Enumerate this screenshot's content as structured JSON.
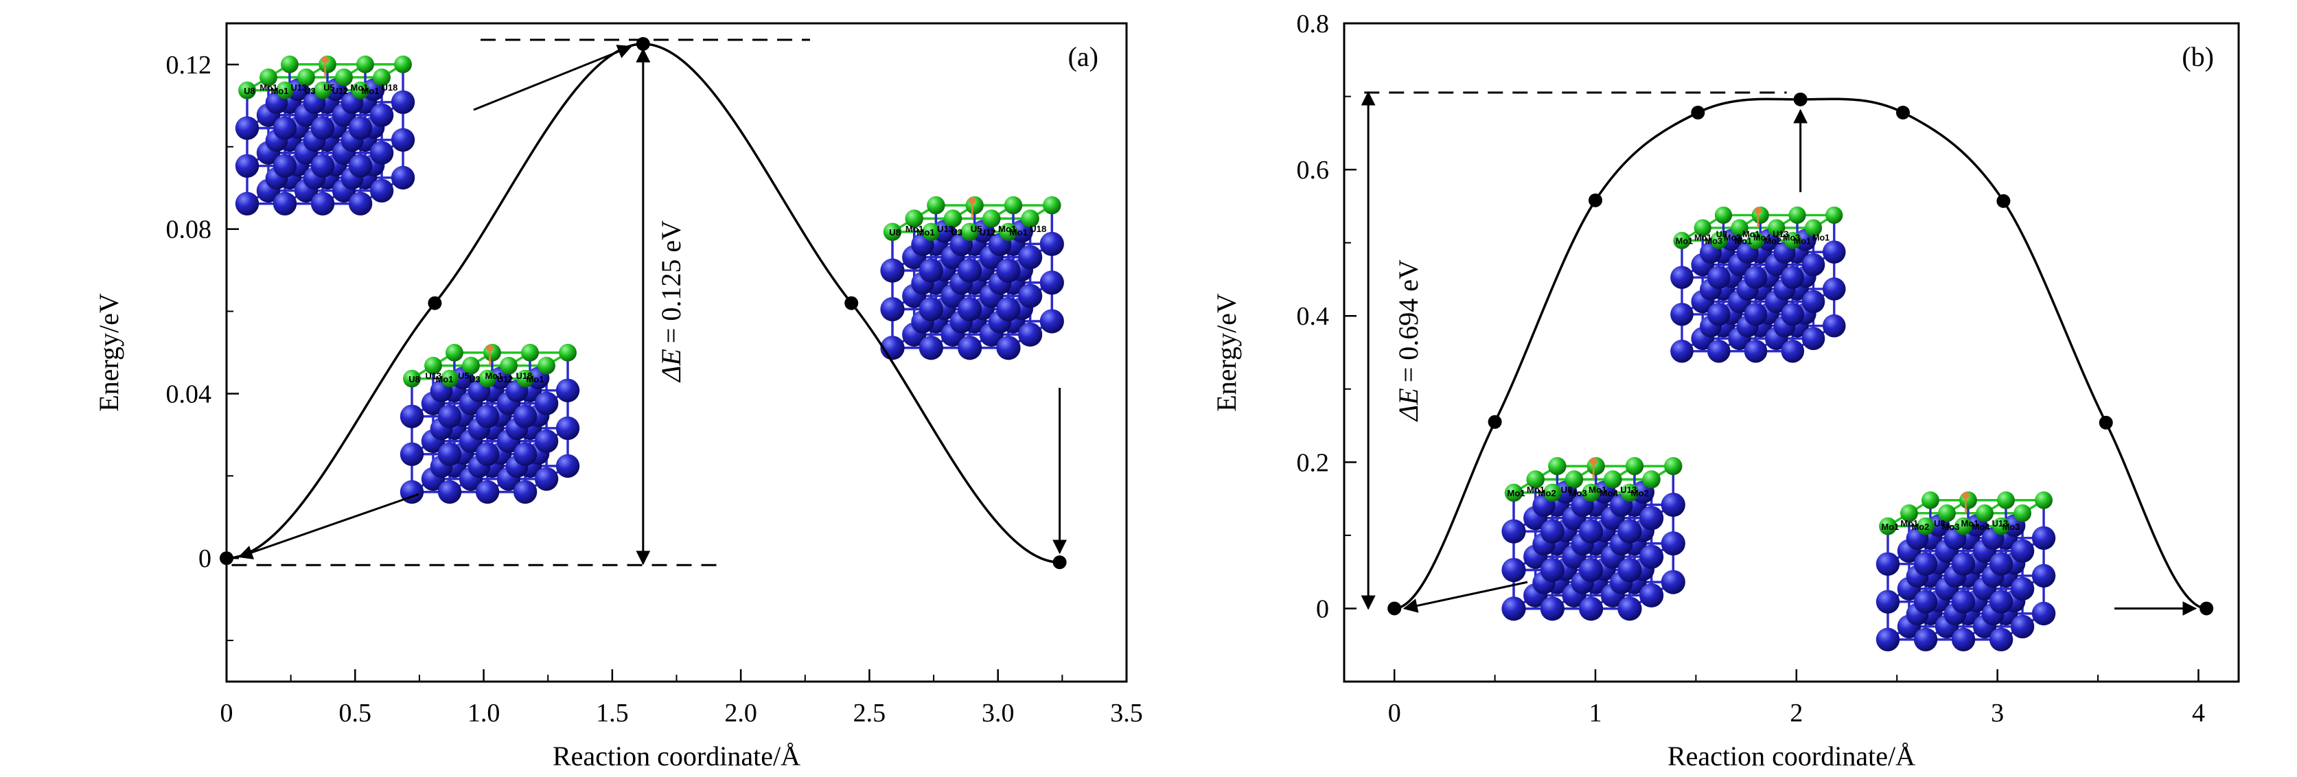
{
  "chart_data": [
    {
      "panel_tag": "(a)",
      "type": "line",
      "xlabel": "Reaction coordinate/Å",
      "ylabel": "Energy/eV",
      "xlim": [
        0,
        3.5
      ],
      "ylim": [
        -0.03,
        0.13
      ],
      "xticks": [
        "0",
        "0.5",
        "1.0",
        "1.5",
        "2.0",
        "2.5",
        "3.0",
        "3.5"
      ],
      "yticks": [
        "0",
        "0.04",
        "0.08",
        "0.12"
      ],
      "points": [
        {
          "x": 0.0,
          "y": 0.0
        },
        {
          "x": 0.81,
          "y": 0.062
        },
        {
          "x": 1.62,
          "y": 0.125
        },
        {
          "x": 2.43,
          "y": 0.062
        },
        {
          "x": 3.24,
          "y": -0.001
        }
      ],
      "barrier": {
        "prefix": "ΔE",
        "suffix": "= 0.125 eV",
        "value": 0.125
      },
      "structures": [
        {
          "labels": [
            "U8",
            "Mo1",
            "U3",
            "U12",
            "Mo1",
            "Mo1",
            "U13",
            "U5",
            "Mo1",
            "U18"
          ]
        },
        {
          "labels": [
            "U8",
            "Mo1",
            "U3",
            "U12",
            "Mo1",
            "U13",
            "U5",
            "Mo1",
            "U18"
          ]
        },
        {
          "labels": [
            "U8",
            "Mo1",
            "U3",
            "U12",
            "Mo1",
            "Mo1",
            "U13",
            "U5",
            "Mo1",
            "U18"
          ]
        }
      ]
    },
    {
      "panel_tag": "(b)",
      "type": "line",
      "xlabel": "Reaction coordinate/Å",
      "ylabel": "Energy/eV",
      "xlim": [
        -0.25,
        4.2
      ],
      "ylim": [
        -0.1,
        0.8
      ],
      "xticks": [
        "0",
        "1",
        "2",
        "3",
        "4"
      ],
      "yticks": [
        "0",
        "0.2",
        "0.4",
        "0.6",
        "0.8"
      ],
      "points": [
        {
          "x": 0.0,
          "y": 0.0
        },
        {
          "x": 0.5,
          "y": 0.255
        },
        {
          "x": 1.0,
          "y": 0.558
        },
        {
          "x": 1.51,
          "y": 0.678
        },
        {
          "x": 2.02,
          "y": 0.696
        },
        {
          "x": 2.53,
          "y": 0.678
        },
        {
          "x": 3.03,
          "y": 0.557
        },
        {
          "x": 3.54,
          "y": 0.254
        },
        {
          "x": 4.04,
          "y": 0.0
        }
      ],
      "barrier": {
        "prefix": "ΔE",
        "suffix": "= 0.694 eV",
        "value": 0.694
      },
      "structures": [
        {
          "labels": [
            "Mo1",
            "Mo3",
            "Mo1",
            "Mo2",
            "Mo1",
            "Mo1",
            "Mo2",
            "Mo4",
            "Mo3",
            "Mo1",
            "U8",
            "Mo1",
            "U13"
          ]
        },
        {
          "labels": [
            "Mo1",
            "Mo2",
            "Mo3",
            "Mo4",
            "Mo2",
            "Mo1",
            "U8",
            "Mo1",
            "U13"
          ]
        },
        {
          "labels": [
            "Mo1",
            "Mo2",
            "Mo3",
            "Mo4",
            "Mo3",
            "Mo1",
            "U8",
            "Mo1",
            "U13"
          ]
        }
      ]
    }
  ],
  "colors": {
    "curve": "#000000",
    "u_atom": "#2a2acc",
    "mo_atom": "#22c422",
    "adatom": "#e0823a",
    "bond": "#2a2acc"
  }
}
